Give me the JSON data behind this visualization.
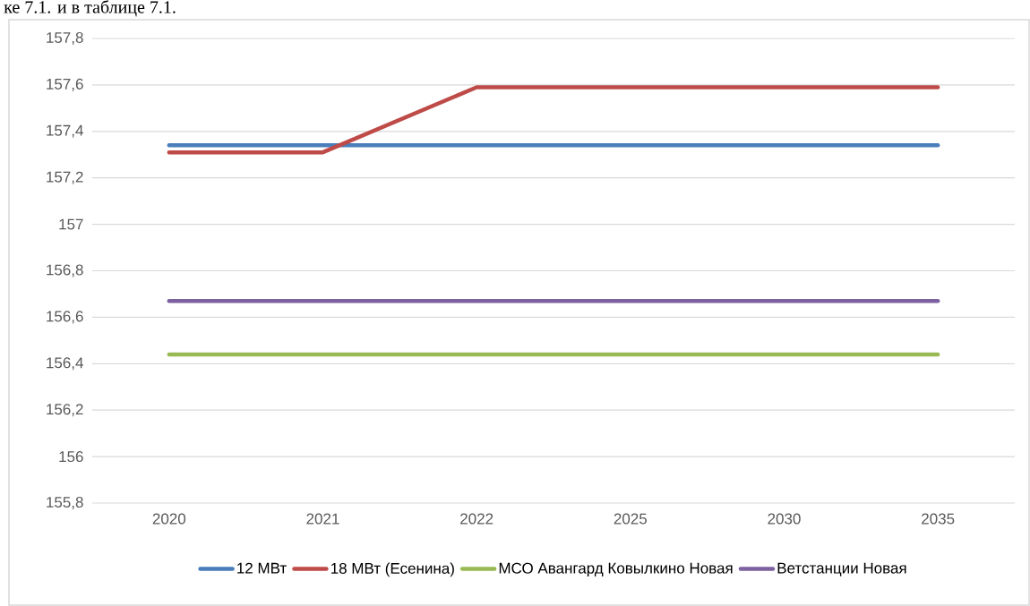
{
  "chart_data": {
    "type": "line",
    "annotations": [
      "ке 7.1. и в таблице 7.1."
    ],
    "categories": [
      "2020",
      "2021",
      "2022",
      "2025",
      "2030",
      "2035"
    ],
    "series": [
      {
        "name": "12 МВт",
        "color": "#4a7ebb",
        "values": [
          157.34,
          157.34,
          157.34,
          157.34,
          157.34,
          157.34
        ]
      },
      {
        "name": "18 МВт (Есенина)",
        "color": "#be4b48",
        "values": [
          157.31,
          157.31,
          157.59,
          157.59,
          157.59,
          157.59
        ]
      },
      {
        "name": "МСО Авангард Ковылкино Новая",
        "color": "#98b954",
        "values": [
          156.44,
          156.44,
          156.44,
          156.44,
          156.44,
          156.44
        ]
      },
      {
        "name": "Ветстанции Новая",
        "color": "#7d60a0",
        "values": [
          156.67,
          156.67,
          156.67,
          156.67,
          156.67,
          156.67
        ]
      }
    ],
    "ylim": [
      155.8,
      157.8
    ],
    "yticks": [
      {
        "value": 155.8,
        "label": "155,8"
      },
      156,
      {
        "value": 156.2,
        "label": "156,2"
      },
      {
        "value": 156.4,
        "label": "156,4"
      },
      {
        "value": 156.6,
        "label": "156,6"
      },
      {
        "value": 156.8,
        "label": "156,8"
      },
      157,
      {
        "value": 157.2,
        "label": "157,2"
      },
      {
        "value": 157.4,
        "label": "157,4"
      },
      {
        "value": 157.6,
        "label": "157,6"
      },
      {
        "value": 157.8,
        "label": "157,8"
      }
    ],
    "grid": "y",
    "legend": "bottom"
  }
}
